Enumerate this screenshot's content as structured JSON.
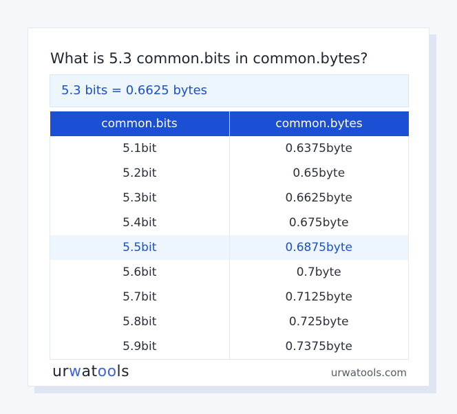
{
  "title": "What is 5.3 common.bits in common.bytes?",
  "answer": "5.3 bits = 0.6625 bytes",
  "table": {
    "headers": [
      "common.bits",
      "common.bytes"
    ],
    "rows": [
      [
        "5.1bit",
        "0.6375byte"
      ],
      [
        "5.2bit",
        "0.65byte"
      ],
      [
        "5.3bit",
        "0.6625byte"
      ],
      [
        "5.4bit",
        "0.675byte"
      ],
      [
        "5.5bit",
        "0.6875byte"
      ],
      [
        "5.6bit",
        "0.7byte"
      ],
      [
        "5.7bit",
        "0.7125byte"
      ],
      [
        "5.8bit",
        "0.725byte"
      ],
      [
        "5.9bit",
        "0.7375byte"
      ]
    ],
    "highlighted_row": 4
  },
  "footer": {
    "logo": "urwatools",
    "site": "urwatools.com"
  },
  "colors": {
    "accent": "#1b50d4",
    "highlight_bg": "#edf5fd"
  }
}
